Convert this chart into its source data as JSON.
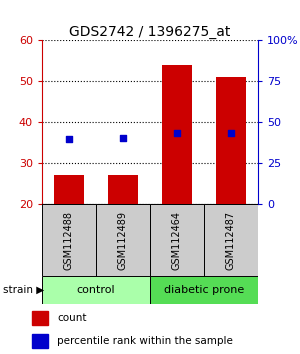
{
  "title": "GDS2742 / 1396275_at",
  "samples": [
    "GSM112488",
    "GSM112489",
    "GSM112464",
    "GSM112487"
  ],
  "counts": [
    27,
    27,
    54,
    51
  ],
  "percentiles": [
    39.5,
    40.0,
    43.0,
    43.0
  ],
  "ylim_left": [
    20,
    60
  ],
  "ylim_right": [
    0,
    100
  ],
  "yticks_left": [
    20,
    30,
    40,
    50,
    60
  ],
  "yticks_right": [
    0,
    25,
    50,
    75,
    100
  ],
  "ytick_labels_right": [
    "0",
    "25",
    "50",
    "75",
    "100%"
  ],
  "bar_color": "#cc0000",
  "dot_color": "#0000cc",
  "bar_width": 0.55,
  "groups": [
    {
      "label": "control",
      "samples": [
        0,
        1
      ],
      "color": "#aaffaa"
    },
    {
      "label": "diabetic prone",
      "samples": [
        2,
        3
      ],
      "color": "#55dd55"
    }
  ],
  "group_label_prefix": "strain",
  "left_axis_color": "#cc0000",
  "right_axis_color": "#0000cc",
  "sample_box_color": "#cccccc",
  "legend_count_label": "count",
  "legend_pct_label": "percentile rank within the sample"
}
